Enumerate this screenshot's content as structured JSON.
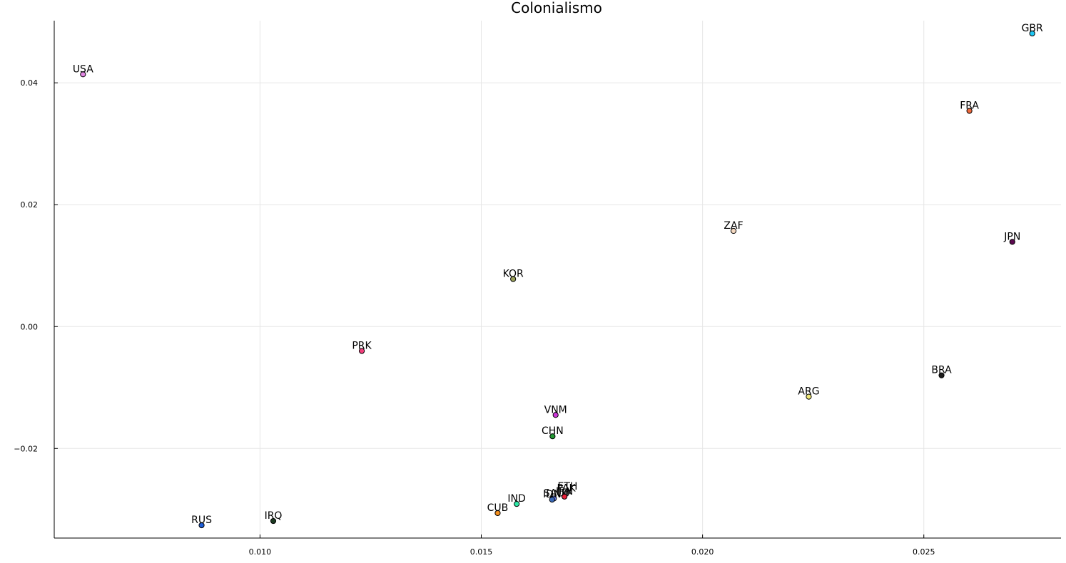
{
  "chart_data": {
    "type": "scatter",
    "title": "Colonialismo",
    "xlabel": "",
    "ylabel": "",
    "xlim": [
      0.00535,
      0.0281
    ],
    "ylim": [
      -0.0347,
      0.0502
    ],
    "xticks": [
      0.01,
      0.015,
      0.02,
      0.025
    ],
    "xtick_labels": [
      "0.010",
      "0.015",
      "0.020",
      "0.025"
    ],
    "yticks": [
      -0.02,
      0.0,
      0.02,
      0.04
    ],
    "ytick_labels": [
      "−0.02",
      "0.00",
      "0.02",
      "0.04"
    ],
    "grid": true,
    "legend": "none",
    "points": [
      {
        "label": "USA",
        "x": 0.006,
        "y": 0.0414,
        "color": "#e287e3"
      },
      {
        "label": "GBR",
        "x": 0.02745,
        "y": 0.0481,
        "color": "#1ec8f5"
      },
      {
        "label": "FRA",
        "x": 0.02603,
        "y": 0.0354,
        "color": "#f06b3e"
      },
      {
        "label": "ZAF",
        "x": 0.0207,
        "y": 0.0157,
        "color": "#f4d8c0"
      },
      {
        "label": "JPN",
        "x": 0.027,
        "y": 0.0139,
        "color": "#5c0a50"
      },
      {
        "label": "KOR",
        "x": 0.01572,
        "y": 0.0078,
        "color": "#9aa05a"
      },
      {
        "label": "PRK",
        "x": 0.0123,
        "y": -0.004,
        "color": "#f23f7c"
      },
      {
        "label": "BRA",
        "x": 0.0254,
        "y": -0.008,
        "color": "#1e1e1e"
      },
      {
        "label": "ARG",
        "x": 0.0224,
        "y": -0.0115,
        "color": "#f0e878"
      },
      {
        "label": "VNM",
        "x": 0.01668,
        "y": -0.0145,
        "color": "#cc37d8"
      },
      {
        "label": "CHN",
        "x": 0.01661,
        "y": -0.018,
        "color": "#239a34"
      },
      {
        "label": "ETH",
        "x": 0.01695,
        "y": -0.0271,
        "color": "#7b8a8a"
      },
      {
        "label": "PAK",
        "x": 0.01692,
        "y": -0.0274,
        "color": "#5a5a5a"
      },
      {
        "label": "IRN",
        "x": 0.01688,
        "y": -0.0279,
        "color": "#e8213a"
      },
      {
        "label": "SAU",
        "x": 0.01664,
        "y": -0.0282,
        "color": "#6a7ef0"
      },
      {
        "label": "IDN",
        "x": 0.0166,
        "y": -0.0284,
        "color": "#3a6ab8"
      },
      {
        "label": "IND",
        "x": 0.0158,
        "y": -0.0291,
        "color": "#2ee8a6"
      },
      {
        "label": "CUB",
        "x": 0.01537,
        "y": -0.0306,
        "color": "#f5901e"
      },
      {
        "label": "IRQ",
        "x": 0.0103,
        "y": -0.0319,
        "color": "#1c3a22"
      },
      {
        "label": "RUS",
        "x": 0.00868,
        "y": -0.0326,
        "color": "#1e5ed8"
      }
    ]
  }
}
